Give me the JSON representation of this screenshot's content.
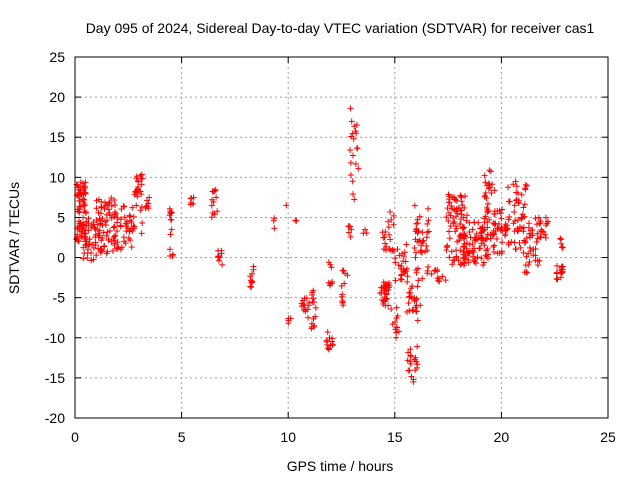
{
  "chart_data": {
    "type": "scatter",
    "title": "Day 095 of 2024, Sidereal Day-to-day VTEC variation (SDTVAR) for receiver cas1",
    "xlabel": "GPS time / hours",
    "ylabel": "SDTVAR / TECUs",
    "xlim": [
      0,
      25
    ],
    "ylim": [
      -20,
      25
    ],
    "xticks": [
      0,
      5,
      10,
      15,
      20,
      25
    ],
    "yticks": [
      -20,
      -15,
      -10,
      -5,
      0,
      5,
      10,
      15,
      20,
      25
    ],
    "xtick_labels": [
      "0",
      "5",
      "10",
      "15",
      "20",
      "25"
    ],
    "ytick_labels": [
      "-20",
      "-15",
      "-10",
      "-5",
      "0",
      "5",
      "10",
      "15",
      "20",
      "25"
    ],
    "grid": true,
    "marker": "+",
    "color": "#ff0000",
    "clusters": [
      {
        "x0": 0.05,
        "x1": 0.55,
        "y0": 2.0,
        "y1": 9.5,
        "n": 70
      },
      {
        "x0": 0.3,
        "x1": 1.3,
        "y0": -0.5,
        "y1": 5.0,
        "n": 60
      },
      {
        "x0": 1.0,
        "x1": 2.0,
        "y0": 0.5,
        "y1": 7.5,
        "n": 50
      },
      {
        "x0": 1.8,
        "x1": 2.8,
        "y0": 1.0,
        "y1": 6.5,
        "n": 45
      },
      {
        "x0": 2.8,
        "x1": 3.2,
        "y0": 3.0,
        "y1": 11.0,
        "n": 25
      },
      {
        "x0": 3.3,
        "x1": 3.5,
        "y0": 6.0,
        "y1": 7.5,
        "n": 8
      },
      {
        "x0": 4.4,
        "x1": 4.6,
        "y0": 0.0,
        "y1": 8.0,
        "n": 14
      },
      {
        "x0": 5.4,
        "x1": 5.6,
        "y0": 6.5,
        "y1": 7.5,
        "n": 6
      },
      {
        "x0": 6.4,
        "x1": 6.7,
        "y0": 5.0,
        "y1": 8.5,
        "n": 12
      },
      {
        "x0": 6.7,
        "x1": 6.9,
        "y0": -1.0,
        "y1": 1.0,
        "n": 8
      },
      {
        "x0": 8.2,
        "x1": 8.4,
        "y0": -4.0,
        "y1": -1.0,
        "n": 10
      },
      {
        "x0": 9.3,
        "x1": 9.4,
        "y0": 3.5,
        "y1": 5.0,
        "n": 3
      },
      {
        "x0": 9.9,
        "x1": 10.0,
        "y0": 6.5,
        "y1": 7.0,
        "n": 1
      },
      {
        "x0": 10.0,
        "x1": 10.2,
        "y0": -8.5,
        "y1": -7.5,
        "n": 4
      },
      {
        "x0": 10.3,
        "x1": 10.4,
        "y0": 3.0,
        "y1": 5.0,
        "n": 2
      },
      {
        "x0": 10.6,
        "x1": 10.9,
        "y0": -7.5,
        "y1": -5.0,
        "n": 10
      },
      {
        "x0": 10.9,
        "x1": 11.3,
        "y0": -9.0,
        "y1": -4.0,
        "n": 18
      },
      {
        "x0": 11.8,
        "x1": 12.1,
        "y0": -11.5,
        "y1": -9.0,
        "n": 14
      },
      {
        "x0": 11.9,
        "x1": 12.1,
        "y0": -3.5,
        "y1": -0.5,
        "n": 8
      },
      {
        "x0": 12.5,
        "x1": 12.8,
        "y0": -6.0,
        "y1": -1.0,
        "n": 12
      },
      {
        "x0": 12.8,
        "x1": 13.0,
        "y0": 2.5,
        "y1": 4.0,
        "n": 6
      },
      {
        "x0": 12.9,
        "x1": 13.3,
        "y0": 5.0,
        "y1": 20.0,
        "n": 20
      },
      {
        "x0": 13.5,
        "x1": 13.7,
        "y0": 3.0,
        "y1": 4.0,
        "n": 3
      },
      {
        "x0": 14.3,
        "x1": 14.8,
        "y0": -6.0,
        "y1": -3.0,
        "n": 30
      },
      {
        "x0": 14.4,
        "x1": 15.0,
        "y0": 0.0,
        "y1": 6.0,
        "n": 20
      },
      {
        "x0": 14.8,
        "x1": 15.2,
        "y0": -10.0,
        "y1": -6.0,
        "n": 12
      },
      {
        "x0": 15.0,
        "x1": 15.6,
        "y0": -3.0,
        "y1": 2.0,
        "n": 25
      },
      {
        "x0": 15.5,
        "x1": 15.8,
        "y0": -7.0,
        "y1": -3.0,
        "n": 10
      },
      {
        "x0": 15.6,
        "x1": 16.1,
        "y0": -15.5,
        "y1": -11.0,
        "n": 20
      },
      {
        "x0": 15.8,
        "x1": 16.3,
        "y0": -9.0,
        "y1": 0.0,
        "n": 20
      },
      {
        "x0": 15.9,
        "x1": 16.6,
        "y0": 0.0,
        "y1": 6.5,
        "n": 35
      },
      {
        "x0": 16.5,
        "x1": 17.0,
        "y0": -2.5,
        "y1": -1.0,
        "n": 8
      },
      {
        "x0": 17.0,
        "x1": 17.4,
        "y0": -3.0,
        "y1": -2.0,
        "n": 6
      },
      {
        "x0": 17.4,
        "x1": 18.4,
        "y0": -1.0,
        "y1": 8.0,
        "n": 90
      },
      {
        "x0": 18.2,
        "x1": 19.4,
        "y0": -1.0,
        "y1": 4.5,
        "n": 70
      },
      {
        "x0": 19.2,
        "x1": 19.7,
        "y0": 2.0,
        "y1": 11.0,
        "n": 35
      },
      {
        "x0": 19.6,
        "x1": 20.4,
        "y0": 0.5,
        "y1": 6.0,
        "n": 40
      },
      {
        "x0": 20.3,
        "x1": 21.2,
        "y0": 1.0,
        "y1": 9.5,
        "n": 45
      },
      {
        "x0": 21.0,
        "x1": 21.8,
        "y0": -2.0,
        "y1": 5.0,
        "n": 40
      },
      {
        "x0": 21.8,
        "x1": 22.2,
        "y0": 2.0,
        "y1": 5.0,
        "n": 15
      },
      {
        "x0": 22.5,
        "x1": 22.9,
        "y0": -3.0,
        "y1": -1.0,
        "n": 15
      },
      {
        "x0": 22.7,
        "x1": 22.9,
        "y0": 1.0,
        "y1": 2.5,
        "n": 6
      }
    ]
  }
}
